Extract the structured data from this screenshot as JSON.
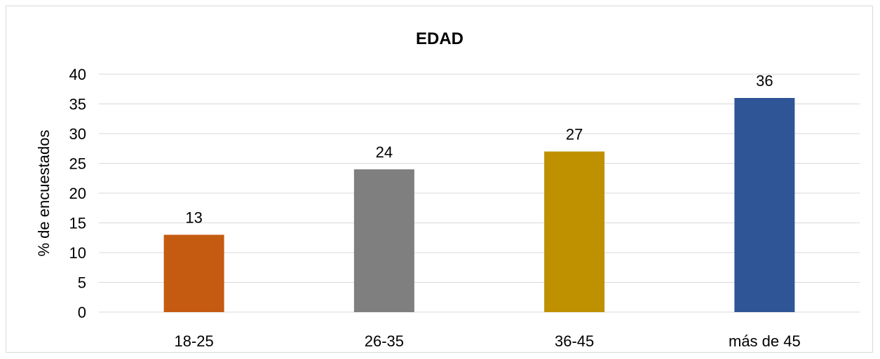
{
  "chart_data": {
    "type": "bar",
    "title": "EDAD",
    "xlabel": "",
    "ylabel": "% de encuestados",
    "categories": [
      "18-25",
      "26-35",
      "36-45",
      "más de 45"
    ],
    "values": [
      13,
      24,
      27,
      36
    ],
    "colors": [
      "#C55A11",
      "#7F7F7F",
      "#BF9000",
      "#2F5597"
    ],
    "ylim": [
      0,
      40
    ],
    "yticks": [
      0,
      5,
      10,
      15,
      20,
      25,
      30,
      35,
      40
    ],
    "grid": true,
    "data_labels": true
  }
}
